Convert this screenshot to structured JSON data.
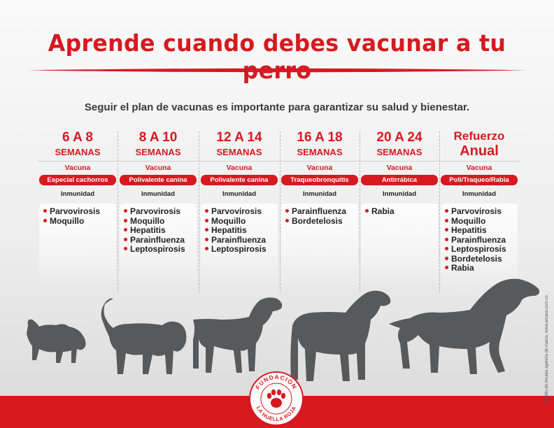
{
  "title": "Aprende cuando debes vacunar a tu perro",
  "subtitle": "Seguir el plan de vacunas es importante para garantizar su salud y bienestar.",
  "colors": {
    "accent": "#d71920",
    "text": "#222222",
    "background": "#eeeeee"
  },
  "columns": [
    {
      "age": "6 A 8",
      "weeks": "SEMANAS",
      "vaccine_label": "Vacuna",
      "vaccine": "Especial cachorros",
      "immunity_label": "Inmunidad",
      "diseases": [
        "Parvovirosis",
        "Moquillo"
      ]
    },
    {
      "age": "8 A 10",
      "weeks": "SEMANAS",
      "vaccine_label": "Vacuna",
      "vaccine": "Polivalente canina",
      "immunity_label": "Inmunidad",
      "diseases": [
        "Parvovirosis",
        "Moquillo",
        "Hepatitis",
        "Parainfluenza",
        "Leptospirosis"
      ]
    },
    {
      "age": "12 A 14",
      "weeks": "SEMANAS",
      "vaccine_label": "Vacuna",
      "vaccine": "Polivalente canina",
      "immunity_label": "Inmunidad",
      "diseases": [
        "Parvovirosis",
        "Moquillo",
        "Hepatitis",
        "Parainfluenza",
        "Leptospirosis"
      ]
    },
    {
      "age": "16 A 18",
      "weeks": "SEMANAS",
      "vaccine_label": "Vacuna",
      "vaccine": "Traqueobronquitis",
      "immunity_label": "Inmunidad",
      "diseases": [
        "Parainfluenza",
        "Bordetelosis"
      ]
    },
    {
      "age": "20 A 24",
      "weeks": "SEMANAS",
      "vaccine_label": "Vacuna",
      "vaccine": "Antirrábica",
      "immunity_label": "Inmunidad",
      "diseases": [
        "Rabia"
      ]
    },
    {
      "age": "Refuerzo",
      "weeks": "Anual",
      "vaccine_label": "Vacuna",
      "vaccine": "Poli/Traqueo/Rabia",
      "immunity_label": "Inmunidad",
      "diseases": [
        "Parvovirosis",
        "Moquillo",
        "Hepatitis",
        "Parainfluenza",
        "Leptospirosis",
        "Bordetelosis",
        "Rabia"
      ]
    }
  ],
  "logo": {
    "top_text": "FUNDACIÓN",
    "bottom_text": "LA HUELLA ROJA",
    "icon": "paw-icon"
  },
  "credit": "Diseño de Arcana agencia de marca, www.arcana.com.co",
  "illustration": [
    "puppy-silhouette",
    "beagle-silhouette",
    "pointer-silhouette",
    "labrador-silhouette",
    "setter-silhouette"
  ]
}
